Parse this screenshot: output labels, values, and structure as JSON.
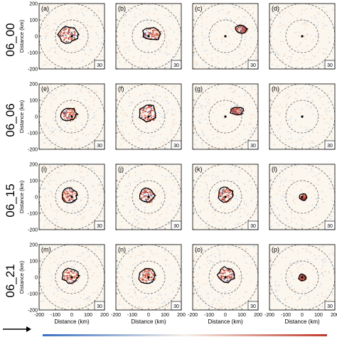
{
  "chart_data": {
    "type": "scatter",
    "x_axis": {
      "label": "Distance (km)",
      "ticks": [
        "-200",
        "-100",
        "0",
        "100",
        "200"
      ],
      "tick_values": [
        -200,
        -100,
        0,
        100,
        200
      ],
      "range": [
        -200,
        200
      ]
    },
    "y_axis": {
      "label": "Distance (km)",
      "ticks": [
        "200",
        "100",
        "0",
        "-100",
        "-200"
      ],
      "tick_values": [
        200,
        100,
        0,
        -100,
        -200
      ],
      "range": [
        -200,
        200
      ]
    },
    "rows": [
      {
        "label": "06_00",
        "panels": [
          "(a)",
          "(b)",
          "(c)",
          "(d)"
        ]
      },
      {
        "label": "06_06",
        "panels": [
          "(e)",
          "(f)",
          "(g)",
          "(h)"
        ]
      },
      {
        "label": "06_15",
        "panels": [
          "(i)",
          "(j)",
          "(k)",
          "(l)"
        ]
      },
      {
        "label": "06_21",
        "panels": [
          "(m)",
          "(n)",
          "(o)",
          "(p)"
        ]
      }
    ],
    "reference_vector_label": "30",
    "range_ring_radii_km": [
      100,
      200
    ],
    "contour_centers_km": [
      [
        [
          -25,
          10
        ],
        [
          20,
          15
        ],
        [
          95,
          45
        ],
        null
      ],
      [
        [
          -20,
          15
        ],
        [
          -5,
          20
        ],
        [
          70,
          35
        ],
        null
      ],
      [
        [
          -15,
          10
        ],
        [
          -10,
          10
        ],
        [
          0,
          15
        ],
        [
          5,
          0
        ]
      ],
      [
        [
          -10,
          10
        ],
        [
          -10,
          10
        ],
        [
          5,
          15
        ],
        [
          0,
          0
        ]
      ]
    ],
    "contour_sizes_km": [
      [
        [
          60,
          50
        ],
        [
          55,
          40
        ],
        [
          35,
          25
        ],
        null
      ],
      [
        [
          50,
          40
        ],
        [
          50,
          55
        ],
        [
          40,
          25
        ],
        null
      ],
      [
        [
          45,
          45
        ],
        [
          45,
          45
        ],
        [
          45,
          45
        ],
        [
          20,
          20
        ]
      ],
      [
        [
          50,
          45
        ],
        [
          50,
          45
        ],
        [
          50,
          45
        ],
        [
          22,
          20
        ]
      ]
    ],
    "colors": {
      "positive": "#e07a5f",
      "negative": "#3a6fc4",
      "strong_positive": "#c0392b",
      "contour": "#000000",
      "ring": "#555555"
    }
  }
}
